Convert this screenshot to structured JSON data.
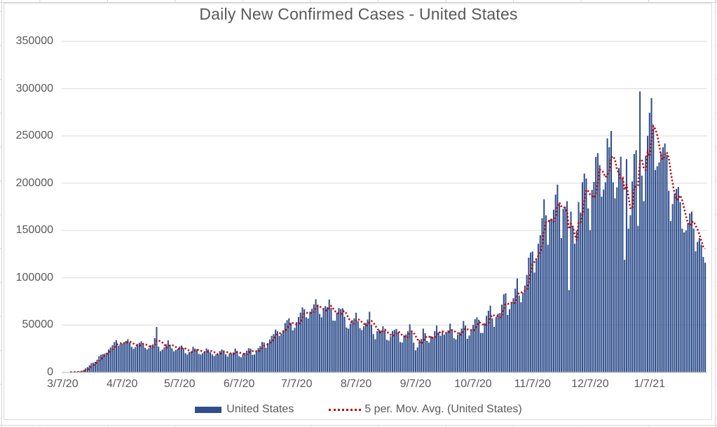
{
  "chart_data": {
    "type": "bar",
    "title": "Daily New Confirmed Cases - United States",
    "x_start_date": "3/7/20",
    "x_end_date": "2/5/21",
    "x_tick_labels": [
      "3/7/20",
      "4/7/20",
      "5/7/20",
      "6/7/20",
      "7/7/20",
      "8/7/20",
      "9/7/20",
      "10/7/20",
      "11/7/20",
      "12/7/20",
      "1/7/21"
    ],
    "x_tick_day_offsets": [
      0,
      31,
      61,
      92,
      122,
      153,
      184,
      214,
      245,
      275,
      306
    ],
    "ylim": [
      0,
      350000
    ],
    "y_tick_interval": 50000,
    "y_tick_labels": [
      "0",
      "50000",
      "100000",
      "150000",
      "200000",
      "250000",
      "300000",
      "350000"
    ],
    "grid": "horizontal",
    "legend_position": "bottom",
    "colors": {
      "bar": "#2F4E8C",
      "moving_average": "#C00000",
      "gridline": "#D9D9D9",
      "axis": "#BFBFBF",
      "text": "#595959"
    },
    "series": [
      {
        "name": "United States",
        "type": "bar",
        "color": "#2F4E8C",
        "values": [
          100,
          200,
          300,
          300,
          400,
          500,
          600,
          700,
          800,
          1000,
          1700,
          2500,
          4300,
          5600,
          7500,
          9900,
          10200,
          11200,
          13400,
          17000,
          18700,
          19400,
          19900,
          20900,
          24300,
          26400,
          28800,
          32100,
          34200,
          28200,
          29600,
          30700,
          31900,
          33300,
          35100,
          31700,
          27100,
          25000,
          26900,
          30000,
          31400,
          32900,
          29900,
          26000,
          24200,
          25700,
          28700,
          29500,
          36200,
          48000,
          27200,
          22500,
          24100,
          26500,
          29700,
          33900,
          29100,
          25500,
          22300,
          23800,
          24800,
          27300,
          28400,
          25600,
          20300,
          18900,
          21500,
          21800,
          27100,
          25300,
          24500,
          19700,
          18900,
          20300,
          22300,
          25400,
          24100,
          21300,
          19100,
          17300,
          18900,
          19000,
          22600,
          24300,
          23300,
          19100,
          16800,
          20000,
          19700,
          21100,
          25200,
          22300,
          17200,
          16000,
          18800,
          20500,
          22900,
          25600,
          25100,
          18600,
          18900,
          23400,
          25700,
          27800,
          32200,
          31700,
          26100,
          31000,
          34700,
          38600,
          40500,
          45300,
          43500,
          38700,
          41100,
          44700,
          52100,
          55200,
          57200,
          52300,
          44400,
          47100,
          53200,
          58500,
          63200,
          68700,
          66900,
          58300,
          56900,
          64200,
          67300,
          72000,
          77300,
          71600,
          61800,
          58200,
          66800,
          70100,
          68900,
          77000,
          68200,
          54800,
          54600,
          63200,
          68000,
          67000,
          67800,
          58900,
          47500,
          46300,
          51400,
          55200,
          57100,
          63100,
          54200,
          46900,
          44800,
          48700,
          52300,
          55900,
          64100,
          50600,
          40500,
          35100,
          43600,
          44900,
          44500,
          48700,
          44500,
          34500,
          33700,
          38200,
          43800,
          45000,
          46000,
          42600,
          32100,
          31500,
          39100,
          40100,
          43500,
          50900,
          43400,
          31400,
          23400,
          26400,
          34300,
          35300,
          46300,
          41500,
          33300,
          31500,
          38300,
          37200,
          43700,
          49600,
          42400,
          38800,
          43200,
          39900,
          42700,
          44400,
          51500,
          45400,
          36200,
          34900,
          39900,
          42400,
          46400,
          54300,
          49500,
          35500,
          39000,
          45400,
          50200,
          56200,
          58200,
          55600,
          41700,
          41800,
          52200,
          59800,
          65200,
          70500,
          57200,
          48200,
          58400,
          62000,
          62800,
          71700,
          82600,
          83700,
          60800,
          66800,
          73700,
          78400,
          88500,
          99300,
          81200,
          74200,
          84400,
          91900,
          103000,
          121300,
          126700,
          127800,
          105500,
          119000,
          136000,
          145000,
          163000,
          183000,
          166000,
          135000,
          161500,
          162000,
          172000,
          187900,
          198500,
          178000,
          142000,
          172900,
          175000,
          181000,
          87000,
          170000,
          155000,
          136000,
          150000,
          180100,
          169000,
          201000,
          210200,
          205000,
          173400,
          150400,
          192900,
          201300,
          227800,
          231800,
          219200,
          185800,
          193300,
          201000,
          247400,
          238000,
          255200,
          201000,
          184000,
          195700,
          216000,
          228000,
          205500,
          119000,
          225500,
          152000,
          166100,
          201900,
          230900,
          234900,
          155000,
          297000,
          208000,
          181000,
          229000,
          250000,
          274500,
          290000,
          258000,
          214000,
          218000,
          222000,
          232000,
          238000,
          242000,
          230000,
          192000,
          160000,
          178000,
          188000,
          194000,
          196000,
          180000,
          152000,
          148000,
          150000,
          158000,
          168000,
          170000,
          152000,
          128000,
          138000,
          142000,
          135000,
          122000,
          116000
        ]
      },
      {
        "name": "5 per. Mov. Avg. (United States)",
        "type": "dotted-line",
        "color": "#C00000",
        "derived": "5-period trailing moving average of United States values"
      }
    ]
  }
}
